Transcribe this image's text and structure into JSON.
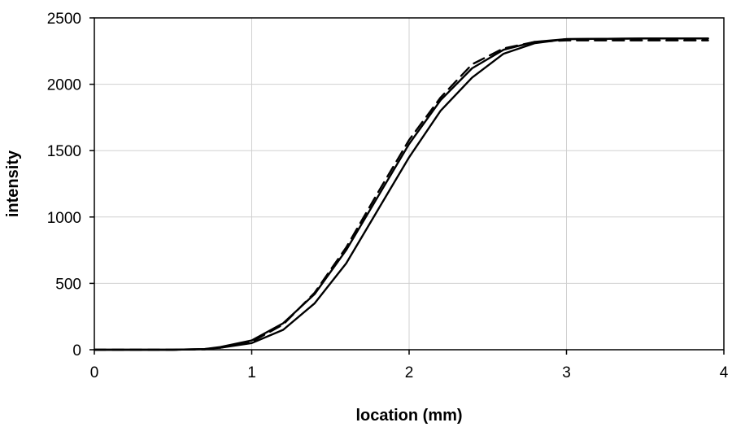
{
  "chart_data": {
    "type": "line",
    "title": "",
    "xlabel": "location (mm)",
    "ylabel": "intensity",
    "xlim": [
      0,
      4
    ],
    "ylim": [
      0,
      2500
    ],
    "x_ticks": [
      0,
      1,
      2,
      3,
      4
    ],
    "y_ticks": [
      0,
      500,
      1000,
      1500,
      2000,
      2500
    ],
    "grid": true,
    "legend": "none",
    "series": [
      {
        "style": "solid",
        "x": [
          0,
          0.5,
          0.7,
          0.8,
          1.0,
          1.2,
          1.4,
          1.6,
          1.8,
          2.0,
          2.2,
          2.4,
          2.6,
          2.8,
          3.0,
          3.5,
          3.9
        ],
        "y": [
          0,
          0,
          5,
          15,
          50,
          150,
          350,
          650,
          1050,
          1450,
          1800,
          2050,
          2230,
          2310,
          2340,
          2345,
          2345
        ]
      },
      {
        "style": "solid",
        "x": [
          0,
          0.5,
          0.7,
          0.8,
          1.0,
          1.2,
          1.4,
          1.6,
          1.8,
          2.0,
          2.2,
          2.4,
          2.6,
          2.8,
          3.0,
          3.5,
          3.9
        ],
        "y": [
          0,
          0,
          5,
          20,
          70,
          200,
          420,
          750,
          1150,
          1550,
          1880,
          2120,
          2260,
          2320,
          2340,
          2345,
          2345
        ]
      },
      {
        "style": "dashed",
        "x": [
          0,
          0.5,
          0.7,
          0.8,
          1.0,
          1.2,
          1.4,
          1.6,
          1.8,
          2.0,
          2.2,
          2.4,
          2.6,
          2.8,
          3.0,
          3.5,
          3.9
        ],
        "y": [
          0,
          0,
          3,
          15,
          60,
          190,
          430,
          770,
          1180,
          1580,
          1900,
          2150,
          2270,
          2320,
          2330,
          2330,
          2330
        ]
      }
    ]
  }
}
